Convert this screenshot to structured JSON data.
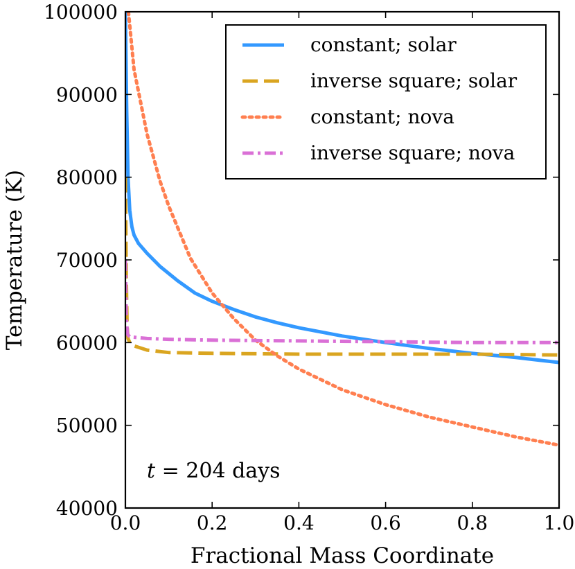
{
  "chart_data": {
    "type": "line",
    "xlabel": "Fractional Mass Coordinate",
    "ylabel": "Temperature (K)",
    "xlim": [
      0.0,
      1.0
    ],
    "ylim": [
      40000,
      100000
    ],
    "xticks": [
      "0.0",
      "0.2",
      "0.4",
      "0.6",
      "0.8",
      "1.0"
    ],
    "yticks": [
      "40000",
      "50000",
      "60000",
      "70000",
      "80000",
      "90000",
      "100000"
    ],
    "grid": false,
    "legend_position": "top-right",
    "annotation": {
      "variable": "t",
      "rest": " = 204 days"
    },
    "series": [
      {
        "name": "constant; solar",
        "color": "#3399ff",
        "style": "solid",
        "x": [
          0.0,
          0.003,
          0.006,
          0.01,
          0.015,
          0.02,
          0.03,
          0.05,
          0.08,
          0.12,
          0.16,
          0.2,
          0.25,
          0.3,
          0.35,
          0.4,
          0.5,
          0.6,
          0.7,
          0.8,
          0.9,
          1.0
        ],
        "y": [
          100000,
          88000,
          80000,
          76000,
          74000,
          73000,
          72000,
          70800,
          69200,
          67500,
          66000,
          65000,
          64000,
          63100,
          62400,
          61800,
          60800,
          60000,
          59300,
          58700,
          58200,
          57600
        ]
      },
      {
        "name": "inverse square; solar",
        "color": "#daa520",
        "style": "dashed",
        "x": [
          0.0,
          0.002,
          0.004,
          0.006,
          0.01,
          0.02,
          0.05,
          0.1,
          0.2,
          0.4,
          0.6,
          0.8,
          1.0
        ],
        "y": [
          80000,
          68000,
          62000,
          60500,
          60000,
          59600,
          59100,
          58800,
          58700,
          58600,
          58600,
          58600,
          58500
        ]
      },
      {
        "name": "constant; nova",
        "color": "#ff7f50",
        "style": "dotted",
        "x": [
          0.007,
          0.02,
          0.05,
          0.08,
          0.1,
          0.15,
          0.2,
          0.25,
          0.3,
          0.35,
          0.4,
          0.5,
          0.6,
          0.7,
          0.8,
          0.9,
          1.0
        ],
        "y": [
          100000,
          93000,
          85200,
          79500,
          76500,
          70200,
          66000,
          62900,
          60300,
          58400,
          56800,
          54300,
          52500,
          51000,
          49800,
          48600,
          47600
        ]
      },
      {
        "name": "inverse square; nova",
        "color": "#da70d6",
        "style": "dashdot",
        "x": [
          0.0,
          0.002,
          0.005,
          0.01,
          0.05,
          0.1,
          0.2,
          0.4,
          0.6,
          0.8,
          1.0
        ],
        "y": [
          70000,
          63000,
          61000,
          60700,
          60500,
          60400,
          60300,
          60200,
          60100,
          60000,
          60000
        ]
      }
    ]
  }
}
